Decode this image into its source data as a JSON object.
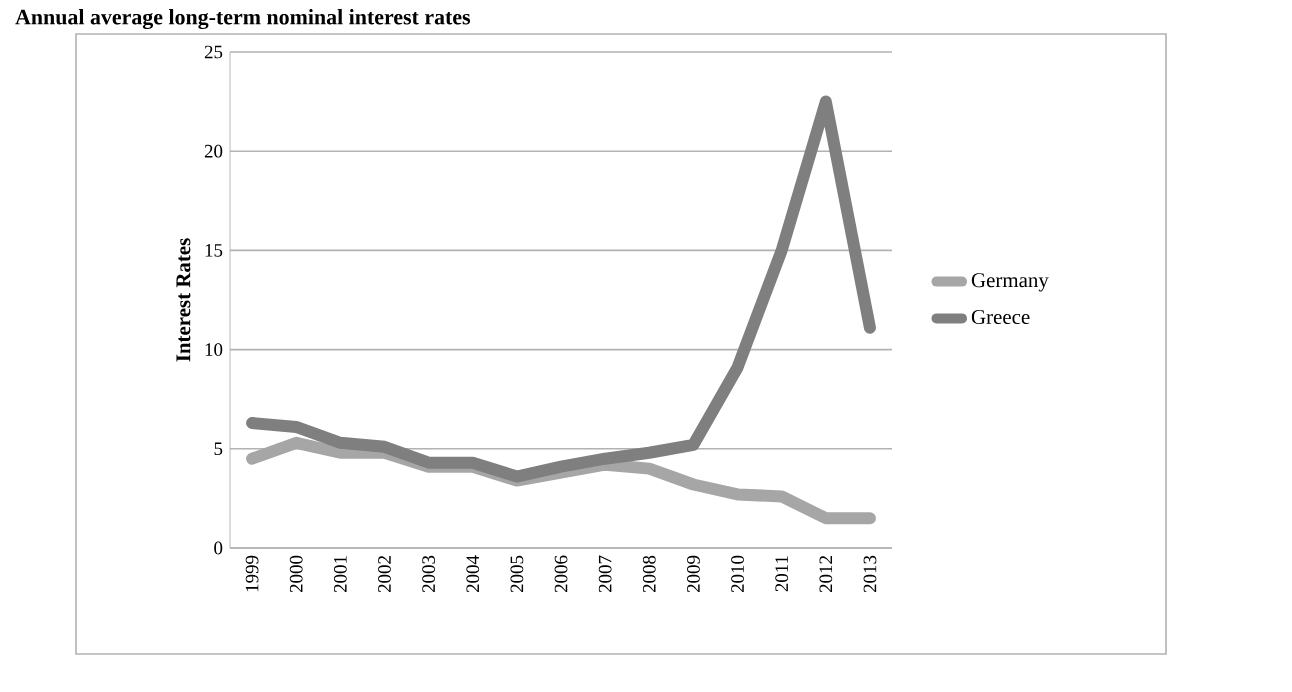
{
  "chart_data": {
    "type": "line",
    "title": "Annual average long-term nominal interest rates",
    "ylabel": "Interest Rates",
    "categories": [
      "1999",
      "2000",
      "2001",
      "2002",
      "2003",
      "2004",
      "2005",
      "2006",
      "2007",
      "2008",
      "2009",
      "2010",
      "2011",
      "2012",
      "2013"
    ],
    "series": [
      {
        "name": "Germany",
        "color": "#a6a6a6",
        "values": [
          4.5,
          5.3,
          4.8,
          4.8,
          4.1,
          4.1,
          3.4,
          3.8,
          4.2,
          4.0,
          3.2,
          2.7,
          2.6,
          1.5,
          1.5
        ]
      },
      {
        "name": "Greece",
        "color": "#7f7f7f",
        "values": [
          6.3,
          6.1,
          5.3,
          5.1,
          4.3,
          4.3,
          3.6,
          4.1,
          4.5,
          4.8,
          5.2,
          9.1,
          15.0,
          22.5,
          11.1
        ]
      }
    ],
    "ylim": [
      0,
      25
    ],
    "yticks": [
      0,
      5,
      10,
      15,
      20,
      25
    ],
    "grid": "y",
    "legend": "right",
    "marker": "none",
    "line_style": "solid"
  }
}
